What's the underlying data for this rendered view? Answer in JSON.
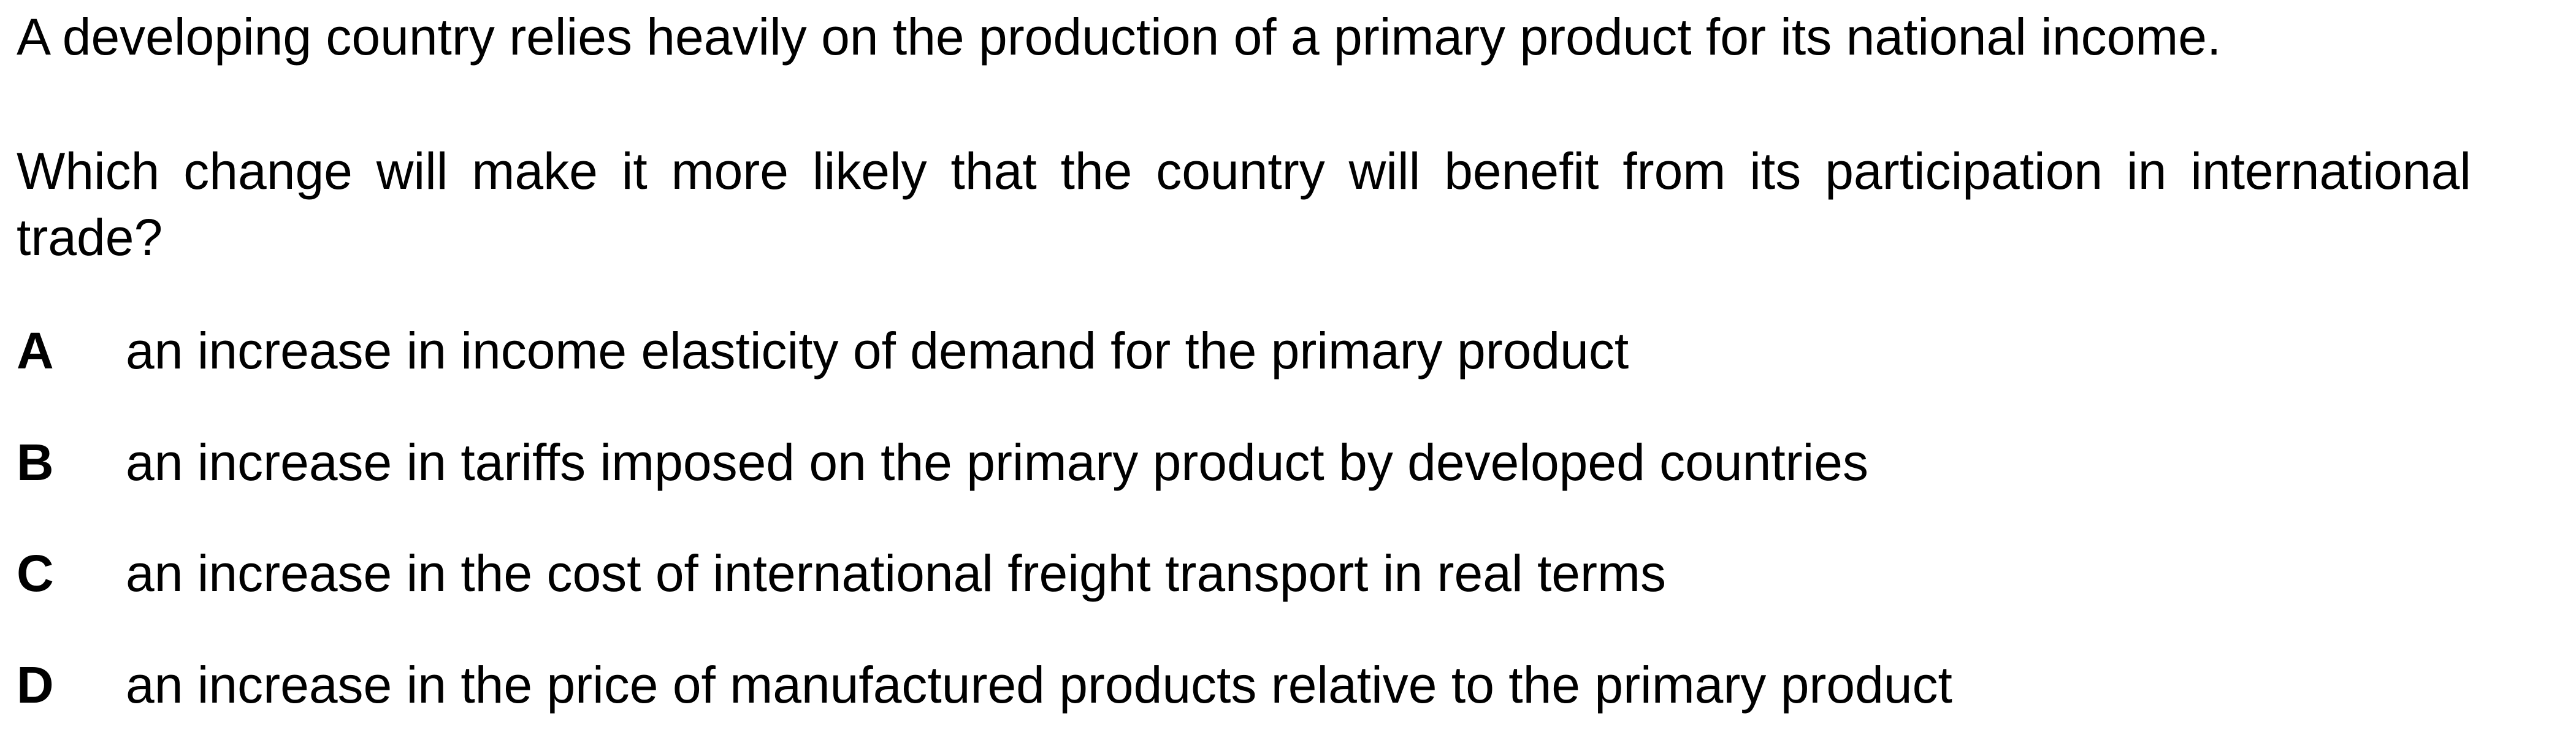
{
  "question": {
    "stem": "A developing country relies heavily on the production of a primary product for its national income.",
    "prompt": "Which change will make it more likely that the country will benefit from its participation in international trade?"
  },
  "options": [
    {
      "letter": "A",
      "text": "an increase in income elasticity of demand for the primary product"
    },
    {
      "letter": "B",
      "text": "an increase in tariffs imposed on the primary product by developed countries"
    },
    {
      "letter": "C",
      "text": "an increase in the cost of international freight transport in real terms"
    },
    {
      "letter": "D",
      "text": "an increase in the price of manufactured products relative to the primary product"
    }
  ]
}
